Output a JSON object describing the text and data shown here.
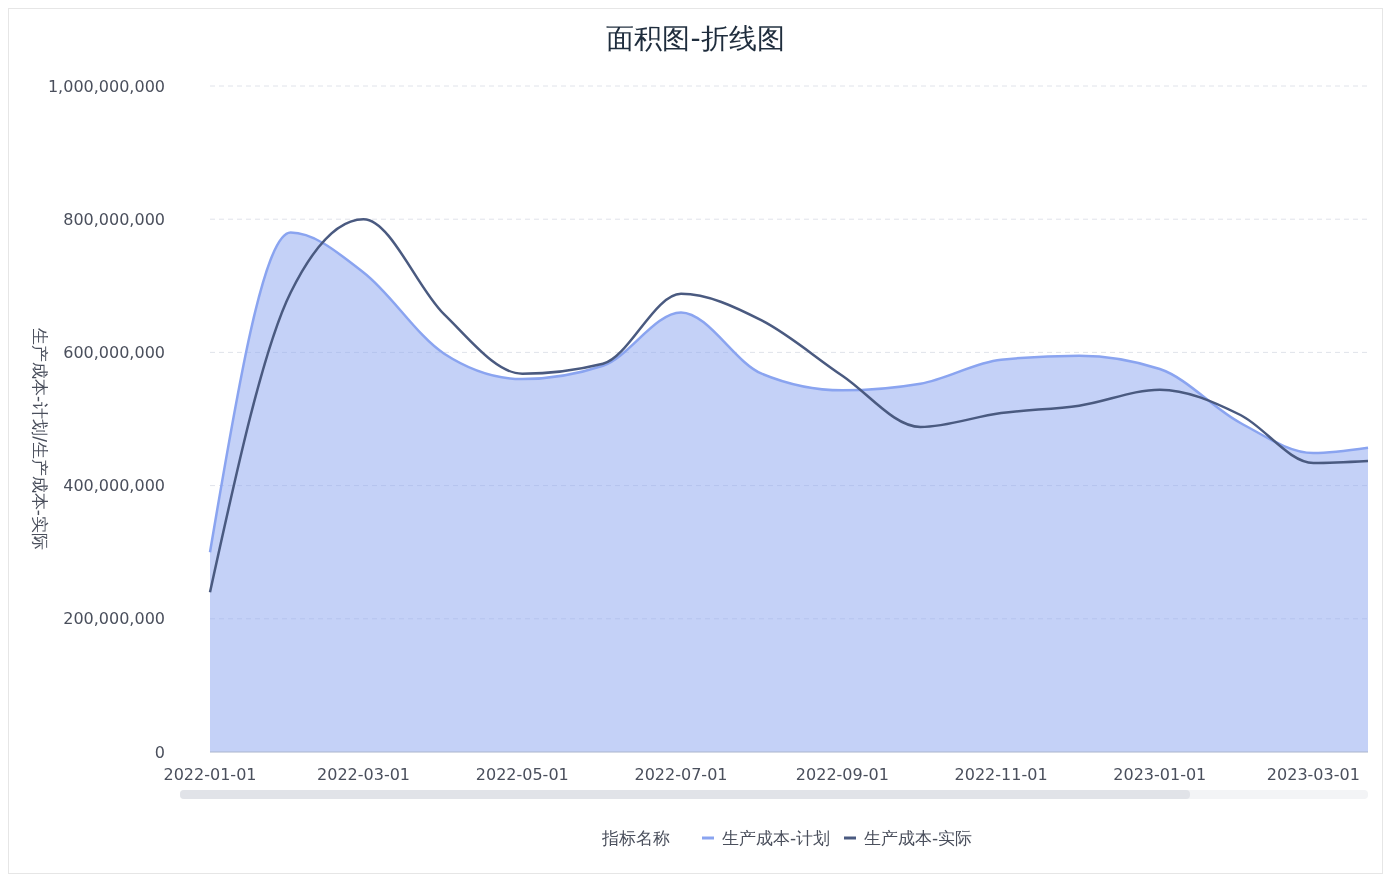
{
  "chart_data": {
    "type": "area",
    "title": "面积图-折线图",
    "ylabel": "生产成本-计划/生产成本-实际",
    "legend_title": "指标名称",
    "x": [
      "2022-01-01",
      "2022-02-01",
      "2022-03-01",
      "2022-04-01",
      "2022-05-01",
      "2022-06-01",
      "2022-07-01",
      "2022-08-01",
      "2022-09-01",
      "2022-10-01",
      "2022-11-01",
      "2022-12-01",
      "2023-01-01",
      "2023-02-01",
      "2023-03-01",
      "2023-03-22"
    ],
    "series": [
      {
        "name": "生产成本-计划",
        "color": "#8aa4f0",
        "values": [
          300000000,
          780000000,
          720000000,
          598000000,
          560000000,
          580000000,
          660000000,
          568000000,
          543000000,
          553000000,
          589000000,
          595000000,
          575000000,
          494000000,
          449000000,
          457000000
        ]
      },
      {
        "name": "生产成本-实际",
        "type": "line",
        "color": "#4a5a80",
        "values": [
          240000000,
          690000000,
          800000000,
          657000000,
          568000000,
          583000000,
          688000000,
          648000000,
          565000000,
          488000000,
          509000000,
          520000000,
          544000000,
          506000000,
          434000000,
          437000000
        ]
      }
    ],
    "xlim": [
      "2022-01-01",
      "2023-03-22"
    ],
    "xticks": [
      {
        "value": "2022-01-01",
        "label": "2022-01-01"
      },
      {
        "value": "2022-03-01",
        "label": "2022-03-01"
      },
      {
        "value": "2022-05-01",
        "label": "2022-05-01"
      },
      {
        "value": "2022-07-01",
        "label": "2022-07-01"
      },
      {
        "value": "2022-09-01",
        "label": "2022-09-01"
      },
      {
        "value": "2022-11-01",
        "label": "2022-11-01"
      },
      {
        "value": "2023-01-01",
        "label": "2023-01-01"
      },
      {
        "value": "2023-03-01",
        "label": "2023-03-01"
      }
    ],
    "ylim": [
      0,
      1000000000
    ],
    "yticks": [
      0,
      {
        "value": 200000000,
        "label": "200,000,000"
      },
      {
        "value": 400000000,
        "label": "400,000,000"
      },
      {
        "value": 600000000,
        "label": "600,000,000"
      },
      {
        "value": 800000000,
        "label": "800,000,000"
      },
      {
        "value": 1000000000,
        "label": "1,000,000,000"
      }
    ],
    "grid": "y",
    "legend": "bottom",
    "marker": "none",
    "line_style": "solid"
  }
}
